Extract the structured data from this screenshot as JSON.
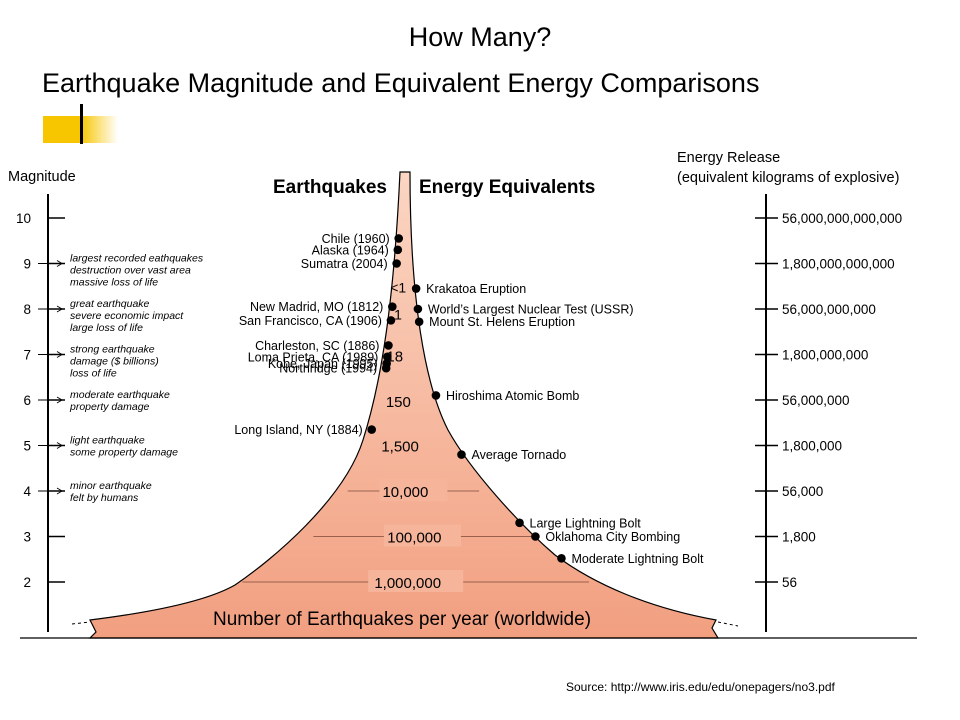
{
  "slide": {
    "title": "How Many?",
    "subtitle": "Earthquake Magnitude and Equivalent Energy Comparisons",
    "source": "Source: http://www.iris.edu/edu/onepagers/no3.pdf"
  },
  "colors": {
    "accent": "#f7c600",
    "funnel_fill_top": "#fbd6c3",
    "funnel_fill_bottom": "#f29f80",
    "outline": "#000000"
  },
  "diagram": {
    "magnitude_label": "Magnitude",
    "energy_label_line1": "Energy Release",
    "energy_label_line2": "(equivalent kilograms of explosive)",
    "header_left": "Earthquakes",
    "header_right": "Energy Equivalents",
    "base_label": "Number of Earthquakes per year (worldwide)",
    "magnitude_scale": [
      {
        "magnitude": "10",
        "energy": "56,000,000,000,000",
        "description": []
      },
      {
        "magnitude": "9",
        "energy": "1,800,000,000,000",
        "description": [
          "largest recorded eathquakes",
          "destruction over vast area",
          "massive loss of life"
        ]
      },
      {
        "magnitude": "8",
        "energy": "56,000,000,000",
        "description": [
          "great earthquake",
          "severe economic impact",
          "large loss of life"
        ]
      },
      {
        "magnitude": "7",
        "energy": "1,800,000,000",
        "description": [
          "strong earthquake",
          "damage ($ billions)",
          "loss of life"
        ]
      },
      {
        "magnitude": "6",
        "energy": "56,000,000",
        "description": [
          "moderate earthquake",
          "property damage"
        ]
      },
      {
        "magnitude": "5",
        "energy": "1,800,000",
        "description": [
          "light earthquake",
          "some property damage"
        ]
      },
      {
        "magnitude": "4",
        "energy": "56,000",
        "description": [
          "minor earthquake",
          "felt by humans"
        ]
      },
      {
        "magnitude": "3",
        "energy": "1,800",
        "description": []
      },
      {
        "magnitude": "2",
        "energy": "56",
        "description": []
      }
    ],
    "counts_per_year": [
      {
        "magnitude": 8.5,
        "count": "<1"
      },
      {
        "magnitude": 7.9,
        "count": "1"
      },
      {
        "magnitude": 6.98,
        "count": "18"
      },
      {
        "magnitude": 5.98,
        "count": "150"
      },
      {
        "magnitude": 5.0,
        "count": "1,500"
      },
      {
        "magnitude": 4.0,
        "count": "10,000"
      },
      {
        "magnitude": 3.0,
        "count": "100,000"
      },
      {
        "magnitude": 2.0,
        "count": "1,000,000"
      }
    ],
    "earthquake_events": [
      {
        "label": "Chile (1960)",
        "magnitude": 9.55
      },
      {
        "label": "Alaska (1964)",
        "magnitude": 9.3
      },
      {
        "label": "Sumatra (2004)",
        "magnitude": 9.0
      },
      {
        "label": "New Madrid, MO (1812)",
        "magnitude": 8.05
      },
      {
        "label": "San Francisco, CA (1906)",
        "magnitude": 7.75
      },
      {
        "label": "Charleston, SC (1886)",
        "magnitude": 7.2
      },
      {
        "label": "Loma Prieta, CA (1989)",
        "magnitude": 6.95
      },
      {
        "label": "Kobe, Japan (1995)",
        "magnitude": 6.8
      },
      {
        "label": "Northridge (1994)",
        "magnitude": 6.7
      },
      {
        "label": "Long Island, NY (1884)",
        "magnitude": 5.35
      }
    ],
    "energy_events": [
      {
        "label": "Krakatoa Eruption",
        "magnitude": 8.45
      },
      {
        "label": "World’s Largest Nuclear Test (USSR)",
        "magnitude": 8.0
      },
      {
        "label": "Mount St. Helens Eruption",
        "magnitude": 7.72
      },
      {
        "label": "Hiroshima Atomic Bomb",
        "magnitude": 6.1
      },
      {
        "label": "Average Tornado",
        "magnitude": 4.8
      },
      {
        "label": "Large Lightning Bolt",
        "magnitude": 3.3
      },
      {
        "label": "Oklahoma City Bombing",
        "magnitude": 3.0
      },
      {
        "label": "Moderate Lightning Bolt",
        "magnitude": 2.52
      }
    ]
  }
}
